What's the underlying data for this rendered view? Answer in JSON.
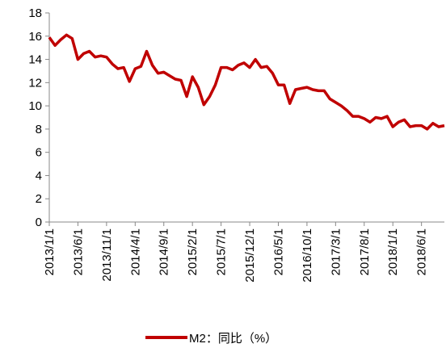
{
  "chart_data": {
    "type": "line",
    "categories": [
      "2013/1/1",
      null,
      null,
      null,
      null,
      "2013/6/1",
      null,
      null,
      null,
      null,
      "2013/11/1",
      null,
      null,
      null,
      null,
      "2014/4/1",
      null,
      null,
      null,
      null,
      "2014/9/1",
      null,
      null,
      null,
      null,
      "2015/2/1",
      null,
      null,
      null,
      null,
      "2015/7/1",
      null,
      null,
      null,
      null,
      "2015/12/1",
      null,
      null,
      null,
      null,
      "2016/5/1",
      null,
      null,
      null,
      null,
      "2016/10/1",
      null,
      null,
      null,
      null,
      "2017/3/1",
      null,
      null,
      null,
      null,
      "2017/8/1",
      null,
      null,
      null,
      null,
      "2018/1/1",
      null,
      null,
      null,
      null,
      "2018/6/1",
      null,
      null,
      null,
      null
    ],
    "series": [
      {
        "name": "M2：同比（%）",
        "color": "#c00000",
        "values": [
          15.9,
          15.2,
          15.7,
          16.1,
          15.8,
          14.0,
          14.5,
          14.7,
          14.2,
          14.3,
          14.2,
          13.6,
          13.2,
          13.3,
          12.1,
          13.2,
          13.4,
          14.7,
          13.5,
          12.8,
          12.9,
          12.6,
          12.3,
          12.2,
          10.8,
          12.5,
          11.6,
          10.1,
          10.8,
          11.8,
          13.3,
          13.3,
          13.1,
          13.5,
          13.7,
          13.3,
          14.0,
          13.3,
          13.4,
          12.8,
          11.8,
          11.8,
          10.2,
          11.4,
          11.5,
          11.6,
          11.4,
          11.3,
          11.3,
          10.6,
          10.3,
          10.0,
          9.6,
          9.1,
          9.1,
          8.9,
          8.6,
          9.0,
          8.9,
          9.1,
          8.2,
          8.6,
          8.8,
          8.2,
          8.3,
          8.3,
          8.0,
          8.5,
          8.2,
          8.3
        ]
      }
    ],
    "ylim": [
      0,
      18
    ],
    "yticks": [
      0,
      2,
      4,
      6,
      8,
      10,
      12,
      14,
      16,
      18
    ],
    "legend": "bottom"
  }
}
